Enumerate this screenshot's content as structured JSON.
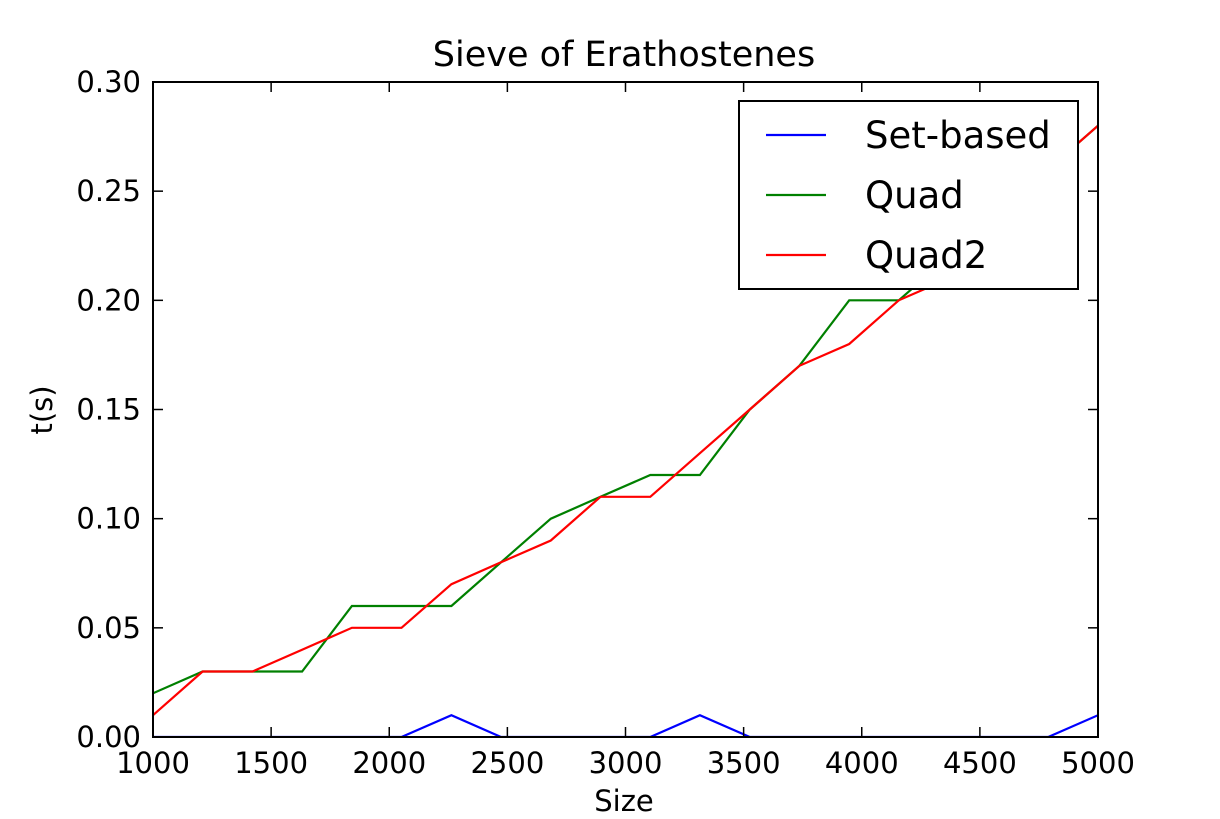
{
  "chart_data": {
    "type": "line",
    "title": "Sieve of Erathostenes",
    "xlabel": "Size",
    "ylabel": "t(s)",
    "xlim": [
      1000,
      5000
    ],
    "ylim": [
      0,
      0.3
    ],
    "xticks": [
      1000,
      1500,
      2000,
      2500,
      3000,
      3500,
      4000,
      4500,
      5000
    ],
    "xtick_labels": [
      "1000",
      "1500",
      "2000",
      "2500",
      "3000",
      "3500",
      "4000",
      "4500",
      "5000"
    ],
    "yticks": [
      0,
      0.05,
      0.1,
      0.15,
      0.2,
      0.25,
      0.3
    ],
    "ytick_labels": [
      "0.00",
      "0.05",
      "0.10",
      "0.15",
      "0.20",
      "0.25",
      "0.30"
    ],
    "grid": false,
    "legend_position": "top-right",
    "x": [
      1000,
      1210,
      1421,
      1631,
      1842,
      2052,
      2263,
      2473,
      2684,
      2894,
      3105,
      3315,
      3526,
      3736,
      3947,
      4157,
      4368,
      4578,
      4789,
      5000
    ],
    "series": [
      {
        "name": "Set-based",
        "color": "#0000ff",
        "values": [
          0,
          0,
          0,
          0,
          0,
          0,
          0.01,
          0,
          0,
          0,
          0,
          0.01,
          0,
          0,
          0,
          0,
          0,
          0,
          0,
          0.01
        ]
      },
      {
        "name": "Quad",
        "color": "#008000",
        "values": [
          0.02,
          0.03,
          0.03,
          0.03,
          0.06,
          0.06,
          0.06,
          0.08,
          0.1,
          0.11,
          0.12,
          0.12,
          0.15,
          0.17,
          0.2,
          0.2,
          0.22,
          0.24,
          0.26,
          0.28
        ]
      },
      {
        "name": "Quad2",
        "color": "#ff0000",
        "values": [
          0.01,
          0.03,
          0.03,
          0.04,
          0.05,
          0.05,
          0.07,
          0.08,
          0.09,
          0.11,
          0.11,
          0.13,
          0.15,
          0.17,
          0.18,
          0.2,
          0.21,
          0.23,
          0.26,
          0.28
        ]
      }
    ]
  }
}
